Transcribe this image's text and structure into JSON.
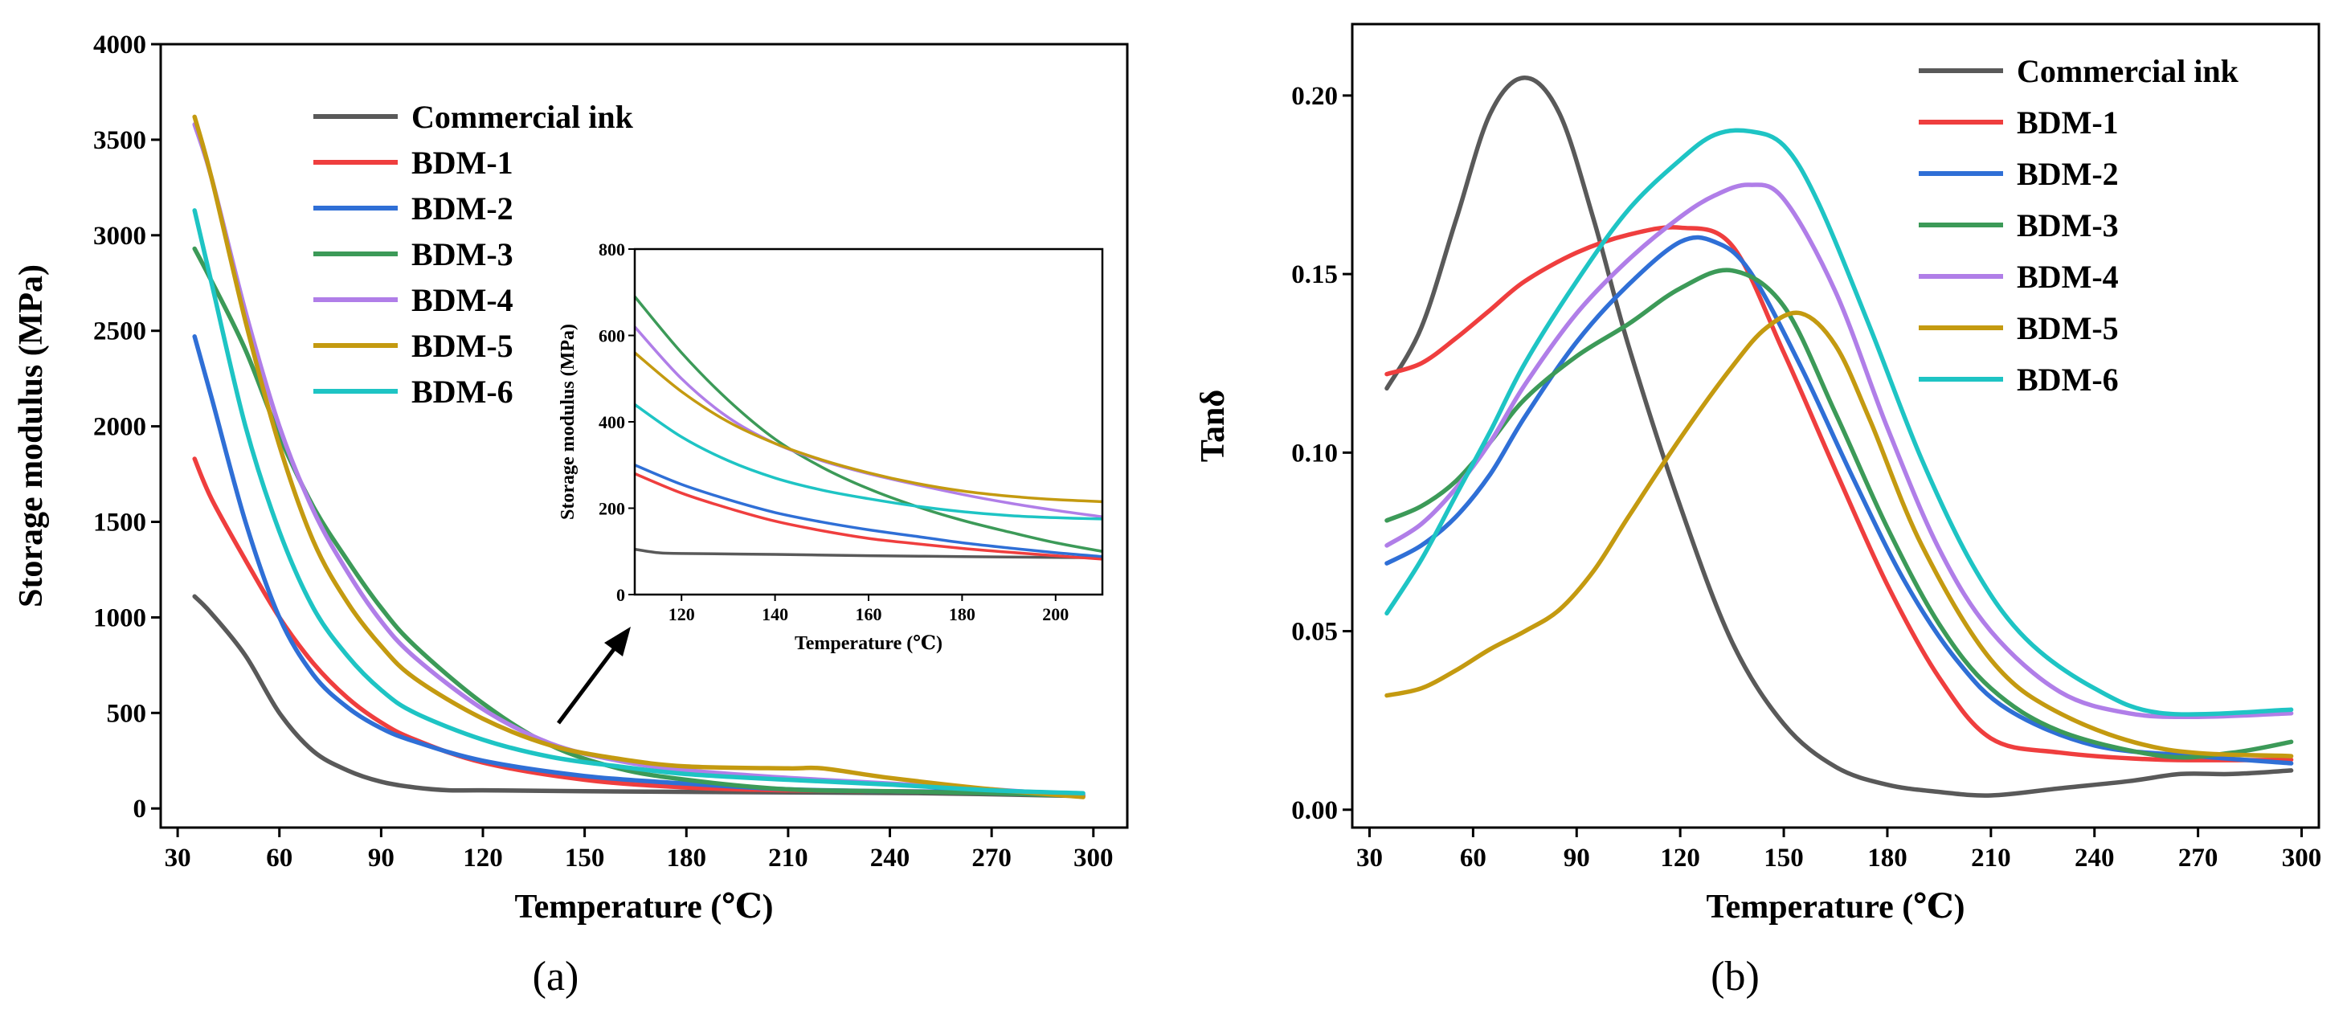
{
  "figures": [
    {
      "id": "a",
      "caption_letter": "a",
      "chart_data": {
        "type": "line",
        "title": "",
        "xlabel": "Temperature (℃)",
        "ylabel": "Storage modulus (MPa)",
        "xlim": [
          25,
          310
        ],
        "ylim": [
          -100,
          4000
        ],
        "xticks": [
          30,
          60,
          90,
          120,
          150,
          180,
          210,
          240,
          270,
          300
        ],
        "yticks": [
          0,
          500,
          1000,
          1500,
          2000,
          2500,
          3000,
          3500,
          4000
        ],
        "legend_position": "upper-middle",
        "series": [
          {
            "name": "Commercial ink",
            "color": "#595959",
            "x": [
              35,
              40,
              50,
              60,
              70,
              80,
              90,
              100,
              110,
              120,
              150,
              200,
              250,
              297
            ],
            "y": [
              1110,
              1020,
              800,
              500,
              300,
              200,
              140,
              110,
              95,
              95,
              90,
              85,
              80,
              65
            ]
          },
          {
            "name": "BDM-1",
            "color": "#ef3e3e",
            "x": [
              35,
              40,
              50,
              60,
              70,
              80,
              90,
              100,
              120,
              150,
              180,
              210,
              240,
              270,
              297
            ],
            "y": [
              1830,
              1620,
              1300,
              1000,
              760,
              580,
              450,
              360,
              240,
              150,
              110,
              95,
              90,
              85,
              70
            ]
          },
          {
            "name": "BDM-2",
            "color": "#2f6fd6",
            "x": [
              35,
              40,
              50,
              60,
              70,
              80,
              90,
              100,
              120,
              150,
              180,
              210,
              240,
              270,
              297
            ],
            "y": [
              2470,
              2150,
              1500,
              1000,
              700,
              530,
              420,
              350,
              250,
              170,
              130,
              100,
              90,
              85,
              70
            ]
          },
          {
            "name": "BDM-3",
            "color": "#3c9a58",
            "x": [
              35,
              40,
              50,
              60,
              70,
              80,
              90,
              100,
              120,
              140,
              160,
              180,
              210,
              240,
              270,
              297
            ],
            "y": [
              2930,
              2760,
              2400,
              1950,
              1580,
              1300,
              1050,
              850,
              550,
              330,
              210,
              150,
              100,
              90,
              80,
              65
            ]
          },
          {
            "name": "BDM-4",
            "color": "#b07ee8",
            "x": [
              35,
              40,
              50,
              60,
              70,
              80,
              90,
              100,
              120,
              140,
              160,
              180,
              210,
              240,
              270,
              297
            ],
            "y": [
              3580,
              3300,
              2600,
              2000,
              1560,
              1240,
              980,
              790,
              520,
              340,
              250,
              200,
              160,
              130,
              100,
              65
            ]
          },
          {
            "name": "BDM-5",
            "color": "#c49a10",
            "x": [
              35,
              40,
              50,
              60,
              70,
              80,
              90,
              100,
              120,
              140,
              160,
              180,
              210,
              220,
              240,
              270,
              297
            ],
            "y": [
              3620,
              3300,
              2550,
              1900,
              1400,
              1080,
              850,
              680,
              470,
              330,
              260,
              220,
              210,
              210,
              160,
              100,
              60
            ]
          },
          {
            "name": "BDM-6",
            "color": "#1ec4c4",
            "x": [
              35,
              40,
              50,
              60,
              70,
              80,
              90,
              100,
              120,
              140,
              160,
              180,
              210,
              240,
              270,
              297
            ],
            "y": [
              3130,
              2750,
              2000,
              1450,
              1050,
              800,
              620,
              500,
              360,
              270,
              220,
              180,
              150,
              125,
              95,
              80
            ]
          }
        ],
        "inset": {
          "xlabel": "Temperature (℃)",
          "ylabel": "Storage modulus (MPa)",
          "xlim": [
            110,
            210
          ],
          "ylim": [
            0,
            800
          ],
          "xticks": [
            120,
            140,
            160,
            180,
            200
          ],
          "yticks": [
            0,
            200,
            400,
            600,
            800
          ],
          "series": [
            {
              "name": "Commercial ink",
              "color": "#595959",
              "x": [
                110,
                115,
                120,
                140,
                160,
                180,
                200,
                210
              ],
              "y": [
                105,
                97,
                95,
                93,
                90,
                88,
                86,
                85
              ]
            },
            {
              "name": "BDM-1",
              "color": "#ef3e3e",
              "x": [
                110,
                120,
                130,
                140,
                150,
                160,
                170,
                180,
                190,
                200,
                210
              ],
              "y": [
                280,
                235,
                200,
                170,
                148,
                130,
                118,
                107,
                98,
                90,
                82
              ]
            },
            {
              "name": "BDM-2",
              "color": "#2f6fd6",
              "x": [
                110,
                120,
                130,
                140,
                150,
                160,
                170,
                180,
                190,
                200,
                210
              ],
              "y": [
                300,
                255,
                220,
                190,
                168,
                150,
                135,
                120,
                108,
                97,
                88
              ]
            },
            {
              "name": "BDM-3",
              "color": "#3c9a58",
              "x": [
                110,
                120,
                130,
                140,
                150,
                160,
                170,
                180,
                190,
                200,
                210
              ],
              "y": [
                690,
                560,
                450,
                360,
                295,
                245,
                205,
                172,
                145,
                120,
                100
              ]
            },
            {
              "name": "BDM-4",
              "color": "#b07ee8",
              "x": [
                110,
                120,
                130,
                140,
                150,
                160,
                170,
                180,
                190,
                200,
                210
              ],
              "y": [
                620,
                500,
                410,
                350,
                310,
                280,
                255,
                232,
                212,
                195,
                180
              ]
            },
            {
              "name": "BDM-5",
              "color": "#c49a10",
              "x": [
                110,
                120,
                130,
                140,
                150,
                160,
                170,
                180,
                190,
                200,
                210
              ],
              "y": [
                560,
                470,
                400,
                350,
                312,
                282,
                258,
                240,
                228,
                220,
                215
              ]
            },
            {
              "name": "BDM-6",
              "color": "#1ec4c4",
              "x": [
                110,
                120,
                130,
                140,
                150,
                160,
                170,
                180,
                190,
                200,
                210
              ],
              "y": [
                440,
                365,
                310,
                270,
                242,
                222,
                205,
                192,
                183,
                178,
                175
              ]
            }
          ]
        }
      }
    },
    {
      "id": "b",
      "caption_letter": "b",
      "chart_data": {
        "type": "line",
        "title": "",
        "xlabel": "Temperature (℃)",
        "ylabel": "Tanδ",
        "xlim": [
          25,
          305
        ],
        "ylim": [
          -0.005,
          0.22
        ],
        "xticks": [
          30,
          60,
          90,
          120,
          150,
          180,
          210,
          240,
          270,
          300
        ],
        "yticks": [
          "0.00",
          "0.05",
          "0.10",
          "0.15",
          "0.20"
        ],
        "legend_position": "top-right",
        "series": [
          {
            "name": "Commercial ink",
            "color": "#595959",
            "x": [
              35,
              45,
              55,
              65,
              75,
              85,
              95,
              105,
              120,
              135,
              150,
              165,
              180,
              195,
              210,
              230,
              250,
              265,
              280,
              297
            ],
            "y": [
              0.118,
              0.135,
              0.165,
              0.195,
              0.205,
              0.195,
              0.165,
              0.13,
              0.085,
              0.047,
              0.024,
              0.012,
              0.007,
              0.005,
              0.004,
              0.006,
              0.008,
              0.01,
              0.01,
              0.011
            ]
          },
          {
            "name": "BDM-1",
            "color": "#ef3e3e",
            "x": [
              35,
              45,
              55,
              65,
              75,
              90,
              105,
              120,
              135,
              150,
              165,
              180,
              195,
              210,
              230,
              260,
              297
            ],
            "y": [
              0.122,
              0.125,
              0.132,
              0.14,
              0.148,
              0.156,
              0.161,
              0.163,
              0.158,
              0.128,
              0.095,
              0.063,
              0.037,
              0.02,
              0.016,
              0.014,
              0.014
            ]
          },
          {
            "name": "BDM-2",
            "color": "#2f6fd6",
            "x": [
              35,
              45,
              55,
              65,
              75,
              90,
              105,
              120,
              130,
              140,
              155,
              170,
              185,
              200,
              215,
              240,
              270,
              297
            ],
            "y": [
              0.069,
              0.074,
              0.082,
              0.094,
              0.11,
              0.131,
              0.147,
              0.159,
              0.159,
              0.151,
              0.124,
              0.093,
              0.064,
              0.042,
              0.028,
              0.018,
              0.015,
              0.013
            ]
          },
          {
            "name": "BDM-3",
            "color": "#3c9a58",
            "x": [
              35,
              45,
              55,
              65,
              75,
              90,
              105,
              120,
              135,
              150,
              165,
              180,
              195,
              210,
              230,
              260,
              280,
              297
            ],
            "y": [
              0.081,
              0.085,
              0.092,
              0.103,
              0.115,
              0.127,
              0.136,
              0.146,
              0.151,
              0.141,
              0.111,
              0.079,
              0.052,
              0.034,
              0.022,
              0.015,
              0.016,
              0.019
            ]
          },
          {
            "name": "BDM-4",
            "color": "#b07ee8",
            "x": [
              35,
              45,
              55,
              65,
              75,
              90,
              105,
              120,
              130,
              140,
              150,
              165,
              180,
              195,
              210,
              230,
              250,
              270,
              297
            ],
            "y": [
              0.074,
              0.08,
              0.09,
              0.103,
              0.119,
              0.139,
              0.154,
              0.166,
              0.172,
              0.175,
              0.171,
              0.145,
              0.107,
              0.073,
              0.05,
              0.033,
              0.027,
              0.026,
              0.027
            ]
          },
          {
            "name": "BDM-5",
            "color": "#c49a10",
            "x": [
              35,
              45,
              55,
              65,
              75,
              85,
              95,
              105,
              120,
              135,
              145,
              155,
              165,
              175,
              190,
              210,
              230,
              260,
              297
            ],
            "y": [
              0.032,
              0.034,
              0.039,
              0.045,
              0.05,
              0.056,
              0.067,
              0.082,
              0.104,
              0.124,
              0.135,
              0.139,
              0.13,
              0.109,
              0.074,
              0.042,
              0.027,
              0.017,
              0.015
            ]
          },
          {
            "name": "BDM-6",
            "color": "#1ec4c4",
            "x": [
              35,
              45,
              55,
              65,
              75,
              90,
              105,
              120,
              130,
              140,
              150,
              160,
              175,
              190,
              205,
              220,
              240,
              260,
              297
            ],
            "y": [
              0.055,
              0.07,
              0.088,
              0.106,
              0.125,
              0.148,
              0.168,
              0.182,
              0.189,
              0.19,
              0.186,
              0.17,
              0.135,
              0.098,
              0.068,
              0.048,
              0.034,
              0.027,
              0.028
            ]
          }
        ]
      }
    }
  ]
}
